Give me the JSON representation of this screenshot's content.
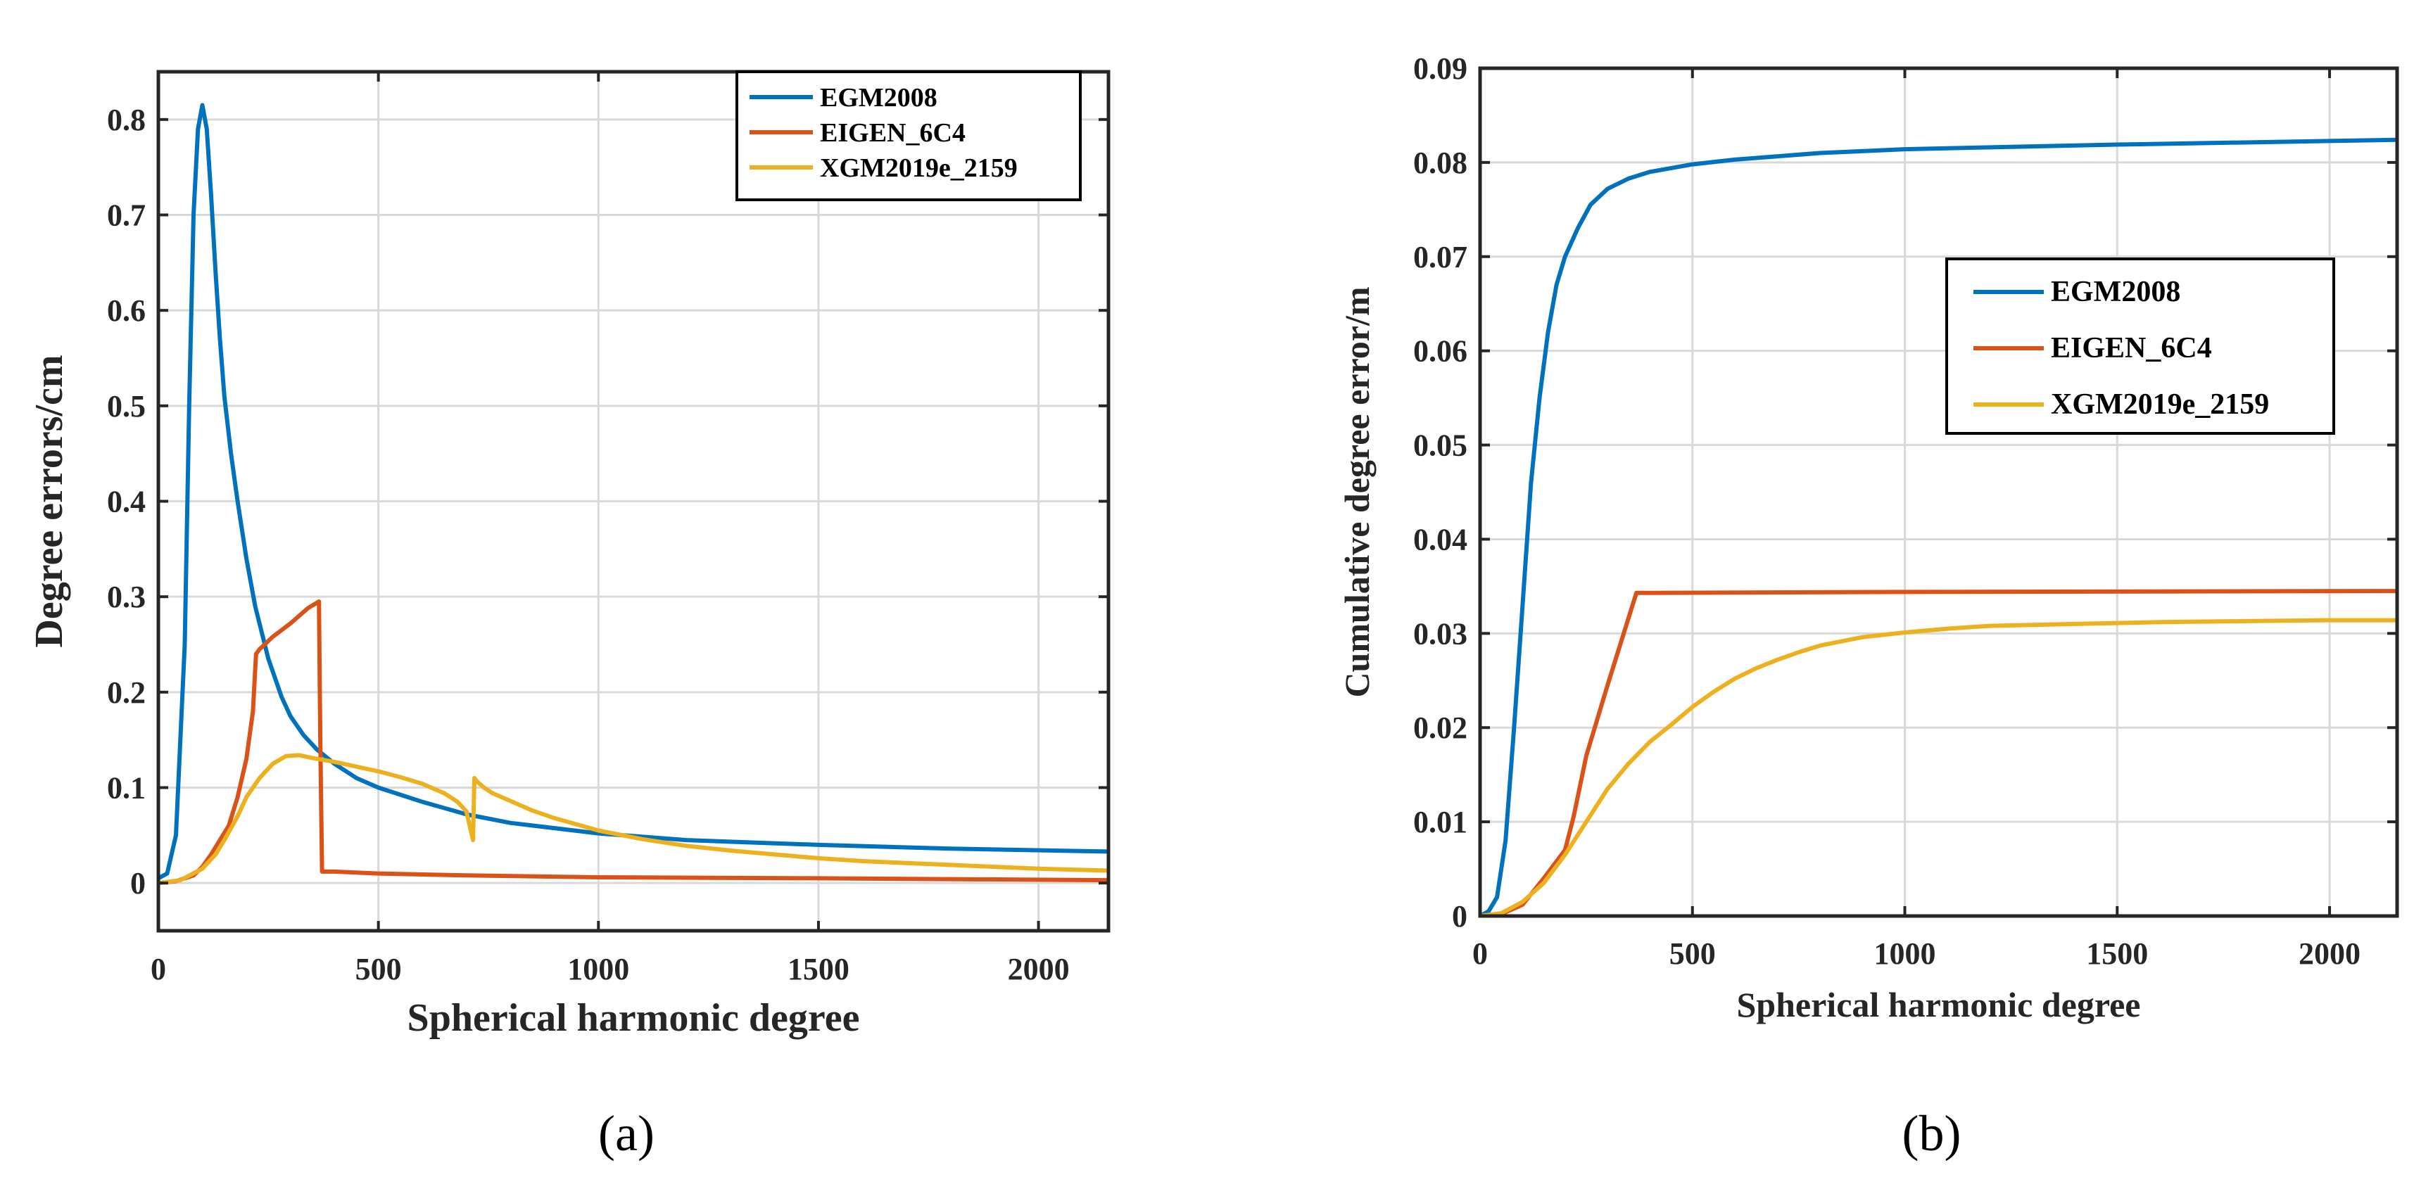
{
  "chart_data": [
    {
      "type": "line",
      "panel_label": "(a)",
      "xlabel": "Spherical harmonic degree",
      "ylabel": "Degree errors/cm",
      "xlim": [
        0,
        2159
      ],
      "ylim": [
        -0.05,
        0.85
      ],
      "xticks": [
        0,
        500,
        1000,
        1500,
        2000
      ],
      "yticks": [
        0,
        0.1,
        0.2,
        0.3,
        0.4,
        0.5,
        0.6,
        0.7,
        0.8
      ],
      "ytick_labels": [
        "0",
        "0.1",
        "0.2",
        "0.3",
        "0.4",
        "0.5",
        "0.6",
        "0.7",
        "0.8"
      ],
      "grid": true,
      "legend_position": "top-right",
      "series": [
        {
          "name": "EGM2008",
          "color": "#0072BD",
          "x": [
            0,
            20,
            40,
            60,
            70,
            80,
            90,
            100,
            110,
            120,
            130,
            140,
            150,
            165,
            180,
            200,
            220,
            250,
            280,
            300,
            330,
            360,
            400,
            450,
            500,
            600,
            700,
            800,
            1000,
            1200,
            1500,
            1800,
            2159
          ],
          "y": [
            0.005,
            0.01,
            0.05,
            0.25,
            0.5,
            0.7,
            0.79,
            0.815,
            0.79,
            0.72,
            0.64,
            0.57,
            0.51,
            0.45,
            0.4,
            0.34,
            0.29,
            0.235,
            0.195,
            0.175,
            0.155,
            0.14,
            0.125,
            0.11,
            0.1,
            0.085,
            0.072,
            0.063,
            0.052,
            0.045,
            0.04,
            0.036,
            0.033
          ]
        },
        {
          "name": "EIGEN_6C4",
          "color": "#D95319",
          "x": [
            0,
            40,
            80,
            100,
            120,
            140,
            160,
            180,
            200,
            215,
            222,
            230,
            260,
            300,
            340,
            365,
            368,
            372,
            400,
            500,
            700,
            1000,
            1500,
            2159
          ],
          "y": [
            0,
            0.002,
            0.008,
            0.017,
            0.03,
            0.045,
            0.06,
            0.09,
            0.13,
            0.18,
            0.24,
            0.245,
            0.258,
            0.272,
            0.288,
            0.295,
            0.15,
            0.012,
            0.012,
            0.01,
            0.008,
            0.006,
            0.005,
            0.003
          ]
        },
        {
          "name": "XGM2019e_2159",
          "color": "#EDB120",
          "x": [
            0,
            50,
            100,
            130,
            150,
            180,
            200,
            230,
            260,
            290,
            320,
            350,
            400,
            450,
            500,
            550,
            600,
            650,
            680,
            700,
            715,
            718,
            725,
            740,
            760,
            800,
            850,
            900,
            1000,
            1100,
            1200,
            1300,
            1400,
            1500,
            1600,
            1700,
            1800,
            1900,
            2000,
            2159
          ],
          "y": [
            0,
            0.003,
            0.015,
            0.03,
            0.045,
            0.07,
            0.09,
            0.11,
            0.125,
            0.133,
            0.134,
            0.131,
            0.127,
            0.122,
            0.117,
            0.111,
            0.104,
            0.094,
            0.085,
            0.075,
            0.045,
            0.11,
            0.106,
            0.1,
            0.094,
            0.086,
            0.076,
            0.068,
            0.055,
            0.046,
            0.039,
            0.034,
            0.03,
            0.026,
            0.023,
            0.021,
            0.019,
            0.017,
            0.015,
            0.013
          ]
        }
      ]
    },
    {
      "type": "line",
      "panel_label": "(b)",
      "xlabel": "Spherical harmonic degree",
      "ylabel": "Cumulative degree error/m",
      "xlim": [
        0,
        2159
      ],
      "ylim": [
        0,
        0.09
      ],
      "xticks": [
        0,
        500,
        1000,
        1500,
        2000
      ],
      "yticks": [
        0,
        0.01,
        0.02,
        0.03,
        0.04,
        0.05,
        0.06,
        0.07,
        0.08,
        0.09
      ],
      "ytick_labels": [
        "0",
        "0.01",
        "0.02",
        "0.03",
        "0.04",
        "0.05",
        "0.06",
        "0.07",
        "0.08",
        "0.09"
      ],
      "grid": true,
      "legend_position": "upper-right",
      "series": [
        {
          "name": "EGM2008",
          "color": "#0072BD",
          "x": [
            0,
            20,
            40,
            60,
            80,
            100,
            120,
            140,
            160,
            180,
            200,
            230,
            260,
            300,
            350,
            400,
            500,
            600,
            800,
            1000,
            1500,
            2159
          ],
          "y": [
            0,
            0.0005,
            0.002,
            0.008,
            0.02,
            0.033,
            0.046,
            0.055,
            0.062,
            0.067,
            0.07,
            0.073,
            0.0755,
            0.0772,
            0.0783,
            0.079,
            0.0798,
            0.0803,
            0.081,
            0.0814,
            0.0819,
            0.0824
          ]
        },
        {
          "name": "EIGEN_6C4",
          "color": "#D95319",
          "x": [
            0,
            50,
            100,
            150,
            200,
            220,
            250,
            300,
            368,
            400,
            1000,
            2159
          ],
          "y": [
            0,
            0.0002,
            0.0012,
            0.004,
            0.007,
            0.0105,
            0.017,
            0.0245,
            0.0343,
            0.0343,
            0.0344,
            0.0345
          ]
        },
        {
          "name": "XGM2019e_2159",
          "color": "#EDB120",
          "x": [
            0,
            50,
            100,
            150,
            200,
            250,
            300,
            350,
            400,
            450,
            500,
            550,
            600,
            650,
            700,
            750,
            800,
            900,
            1000,
            1100,
            1200,
            1400,
            1600,
            1800,
            2000,
            2159
          ],
          "y": [
            0,
            0.0003,
            0.0015,
            0.0035,
            0.0065,
            0.01,
            0.0135,
            0.0162,
            0.0185,
            0.0203,
            0.0222,
            0.0238,
            0.0252,
            0.0263,
            0.0272,
            0.028,
            0.0287,
            0.0296,
            0.0301,
            0.0305,
            0.0308,
            0.031,
            0.0312,
            0.0313,
            0.0314,
            0.0314
          ]
        }
      ]
    }
  ]
}
